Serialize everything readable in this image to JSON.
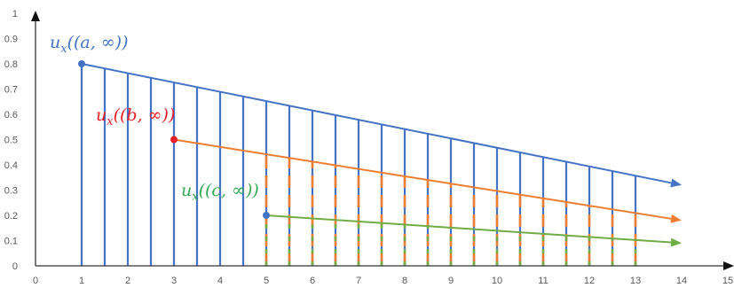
{
  "chart_data": {
    "type": "line",
    "x_ticks": [
      "0",
      "1",
      "2",
      "3",
      "4",
      "5",
      "6",
      "7",
      "8",
      "9",
      "10",
      "11",
      "12",
      "13",
      "14",
      "15"
    ],
    "y_ticks": [
      "0",
      "0.1",
      "0.2",
      "0.3",
      "0.4",
      "0.5",
      "0.6",
      "0.7",
      "0.8",
      "0.9",
      "1"
    ],
    "xlim": [
      0,
      15
    ],
    "ylim": [
      0,
      1
    ],
    "grid": false,
    "annotations": [
      {
        "id": "a",
        "base": "u",
        "sub": "x",
        "arg": "((a, ∞))",
        "color": "#4472c4"
      },
      {
        "id": "b",
        "base": "u",
        "sub": "x",
        "arg": "((b, ∞))",
        "color": "#e8202a"
      },
      {
        "id": "c",
        "base": "u",
        "sub": "x",
        "arg": "((c, ∞))",
        "color": "#34a853"
      }
    ],
    "series": [
      {
        "id": "a",
        "start": [
          1,
          0.8
        ],
        "end": [
          14,
          0.32
        ],
        "color": "#4472c4",
        "marker": "#4472c4",
        "vlines_x": [
          1,
          1.5,
          2,
          2.5,
          3,
          3.5,
          4,
          4.5,
          5,
          5.5,
          6,
          6.5,
          7,
          7.5,
          8,
          8.5,
          9,
          9.5,
          10,
          10.5,
          11,
          11.5,
          12,
          12.5,
          13
        ],
        "style": "solid"
      },
      {
        "id": "b",
        "start": [
          3,
          0.5
        ],
        "end": [
          14,
          0.18
        ],
        "color": "#ed7d31",
        "marker": "#e8202a",
        "vlines_x": [
          5,
          5.5,
          6,
          6.5,
          7,
          7.5,
          8,
          8.5,
          9,
          9.5,
          10,
          10.5,
          11,
          11.5,
          12,
          12.5,
          13
        ],
        "style": "dashed"
      },
      {
        "id": "c",
        "start": [
          5,
          0.2
        ],
        "end": [
          14,
          0.09
        ],
        "color": "#70ad47",
        "marker": "#4472c4",
        "vlines_x": [
          5,
          5.5,
          6,
          6.5,
          7,
          7.5,
          8,
          8.5,
          9,
          9.5,
          10,
          10.5,
          11,
          11.5,
          12,
          12.5,
          13
        ],
        "style": "dashed"
      }
    ]
  }
}
